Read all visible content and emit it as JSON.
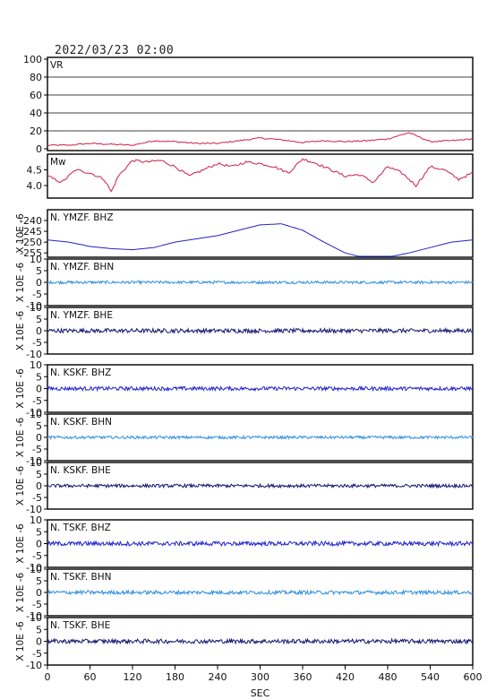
{
  "header": {
    "datetime": "2022/03/23 02:00"
  },
  "colors": {
    "frame": "#000000",
    "vr": "#d01c4a",
    "mw": "#d01c4a",
    "bhz": "#1f1fd0",
    "bhn": "#2f8fe0",
    "bhe": "#151570",
    "ymzf_bhz": "#2222c8"
  },
  "x_axis": {
    "label": "SEC",
    "ticks": [
      "0",
      "60",
      "120",
      "180",
      "240",
      "300",
      "360",
      "420",
      "480",
      "540",
      "600"
    ],
    "range": [
      0,
      600
    ]
  },
  "chart_data": [
    {
      "type": "line",
      "name": "VR",
      "title": "VR",
      "ylim": [
        0,
        100
      ],
      "yticks": [
        "100",
        "80",
        "60",
        "40",
        "20",
        "0"
      ],
      "grid": true,
      "x": [
        0,
        30,
        60,
        90,
        120,
        150,
        180,
        210,
        240,
        270,
        300,
        330,
        360,
        390,
        420,
        450,
        480,
        510,
        540,
        570,
        600
      ],
      "values": [
        4,
        4,
        6,
        5,
        4,
        9,
        8,
        6,
        6,
        9,
        12,
        10,
        7,
        9,
        8,
        9,
        11,
        18,
        8,
        9,
        11
      ]
    },
    {
      "type": "line",
      "name": "Mw",
      "title": "Mw",
      "ylim": [
        3.6,
        5.0
      ],
      "yticks": [
        "4.5",
        "4.0"
      ],
      "x": [
        0,
        20,
        40,
        60,
        80,
        90,
        100,
        120,
        140,
        160,
        180,
        200,
        220,
        240,
        260,
        280,
        300,
        320,
        340,
        360,
        380,
        400,
        420,
        440,
        460,
        480,
        500,
        520,
        540,
        560,
        580,
        600
      ],
      "values": [
        4.3,
        4.1,
        4.5,
        4.4,
        4.2,
        3.8,
        4.3,
        4.8,
        4.75,
        4.8,
        4.6,
        4.3,
        4.5,
        4.7,
        4.6,
        4.75,
        4.7,
        4.6,
        4.4,
        4.85,
        4.7,
        4.5,
        4.3,
        4.35,
        4.1,
        4.6,
        4.4,
        4.0,
        4.6,
        4.5,
        4.2,
        4.4
      ]
    },
    {
      "type": "line",
      "name": "N. YMZF. BHZ",
      "title": "N. YMZF. BHZ",
      "ylabel": "X 10E -6",
      "ylim": [
        -257,
        -235
      ],
      "yticks": [
        "-240",
        "-245",
        "-250",
        "-255"
      ],
      "x": [
        0,
        30,
        60,
        90,
        120,
        150,
        180,
        210,
        240,
        270,
        300,
        330,
        360,
        390,
        420,
        450,
        480,
        510,
        540,
        570,
        600
      ],
      "values": [
        -249,
        -250,
        -252,
        -253,
        -253.5,
        -252.5,
        -250,
        -248.5,
        -247,
        -244.5,
        -242,
        -241.5,
        -244.5,
        -250,
        -255,
        -257.5,
        -257,
        -255,
        -252.5,
        -250,
        -249
      ]
    },
    {
      "type": "line",
      "name": "N. YMZF. BHN",
      "title": "N. YMZF. BHN",
      "ylabel": "X 10E -6",
      "ylim": [
        -10,
        10
      ],
      "yticks": [
        "10",
        "5",
        "0",
        "-5",
        "-10"
      ],
      "baseline": 0,
      "noise_amplitude": 0.6
    },
    {
      "type": "line",
      "name": "N. YMZF. BHE",
      "title": "N. YMZF. BHE",
      "ylabel": "X 10E -6",
      "ylim": [
        -10,
        10
      ],
      "yticks": [
        "10",
        "5",
        "0",
        "-5",
        "-10"
      ],
      "baseline": 0,
      "noise_amplitude": 0.9
    },
    {
      "type": "line",
      "name": "N. KSKF. BHZ",
      "title": "N. KSKF. BHZ",
      "ylabel": "X 10E -6",
      "ylim": [
        -10,
        10
      ],
      "yticks": [
        "10",
        "5",
        "0",
        "-5",
        "-10"
      ],
      "baseline": 0,
      "noise_amplitude": 0.8
    },
    {
      "type": "line",
      "name": "N. KSKF. BHN",
      "title": "N. KSKF. BHN",
      "ylabel": "X 10E -6",
      "ylim": [
        -10,
        10
      ],
      "yticks": [
        "10",
        "5",
        "0",
        "-5",
        "-10"
      ],
      "baseline": 0,
      "noise_amplitude": 0.6
    },
    {
      "type": "line",
      "name": "N. KSKF. BHE",
      "title": "N. KSKF. BHE",
      "ylabel": "X 10E -6",
      "ylim": [
        -10,
        10
      ],
      "yticks": [
        "10",
        "5",
        "0",
        "-5",
        "-10"
      ],
      "baseline": 0,
      "noise_amplitude": 0.7
    },
    {
      "type": "line",
      "name": "N. TSKF. BHZ",
      "title": "N. TSKF. BHZ",
      "ylabel": "X 10E -6",
      "ylim": [
        -10,
        10
      ],
      "yticks": [
        "10",
        "5",
        "0",
        "-5",
        "-10"
      ],
      "baseline": 0,
      "noise_amplitude": 0.9
    },
    {
      "type": "line",
      "name": "N. TSKF. BHN",
      "title": "N. TSKF. BHN",
      "ylabel": "X 10E -6",
      "ylim": [
        -10,
        10
      ],
      "yticks": [
        "10",
        "5",
        "0",
        "-5",
        "-10"
      ],
      "baseline": 0,
      "noise_amplitude": 0.8
    },
    {
      "type": "line",
      "name": "N. TSKF. BHE",
      "title": "N. TSKF. BHE",
      "ylabel": "X 10E -6",
      "ylim": [
        -10,
        10
      ],
      "yticks": [
        "10",
        "5",
        "0",
        "-5",
        "-10"
      ],
      "baseline": 0,
      "noise_amplitude": 0.9
    }
  ]
}
